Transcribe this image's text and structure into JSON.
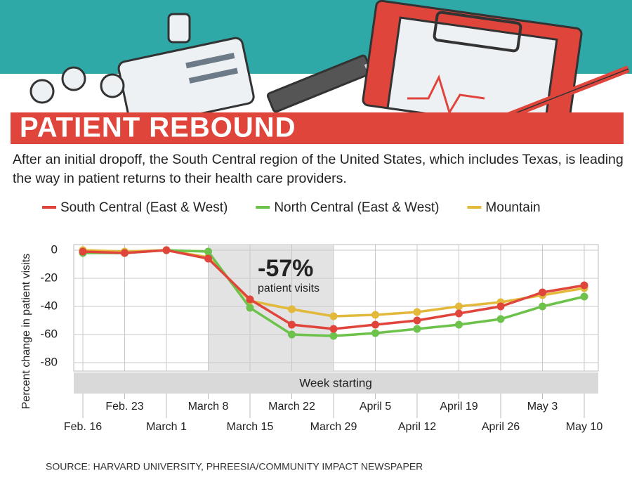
{
  "chart_data": {
    "type": "line",
    "title": "PATIENT REBOUND",
    "subtitle": "After an initial dropoff, the South Central region of the United States, which includes Texas, is leading the way in patient returns to their health care providers.",
    "y_label": "Percent change in patient visits",
    "x_label": "Week starting",
    "annotation": {
      "text": "-57%",
      "subtext": "patient visits"
    },
    "source": "SOURCE: HARVARD UNIVERSITY, PHREESIA/COMMUNITY IMPACT NEWSPAPER",
    "categories": [
      "Feb. 16",
      "Feb. 23",
      "March 1",
      "March 8",
      "March 15",
      "March 22",
      "March 29",
      "April 5",
      "April 12",
      "April 19",
      "April 26",
      "May 3",
      "May 10"
    ],
    "series": [
      {
        "name": "South Central (East & West)",
        "color": "#e0453c",
        "values": [
          -1,
          -2,
          0,
          -6,
          -35,
          -53,
          -56,
          -53,
          -50,
          -45,
          -40,
          -30,
          -25
        ]
      },
      {
        "name": "North Central (East & West)",
        "color": "#6cc24a",
        "values": [
          -2,
          -2,
          0,
          -1,
          -41,
          -60,
          -61,
          -59,
          -56,
          -53,
          -49,
          -40,
          -33
        ]
      },
      {
        "name": "Mountain",
        "color": "#e2b93b",
        "values": [
          0,
          -1,
          0,
          -5,
          -36,
          -42,
          -47,
          -46,
          -44,
          -40,
          -37,
          -32,
          -27
        ]
      }
    ],
    "ylim": [
      -86,
      4
    ],
    "yticks": [
      0,
      -20,
      -40,
      -60,
      -80
    ],
    "grid": true
  }
}
